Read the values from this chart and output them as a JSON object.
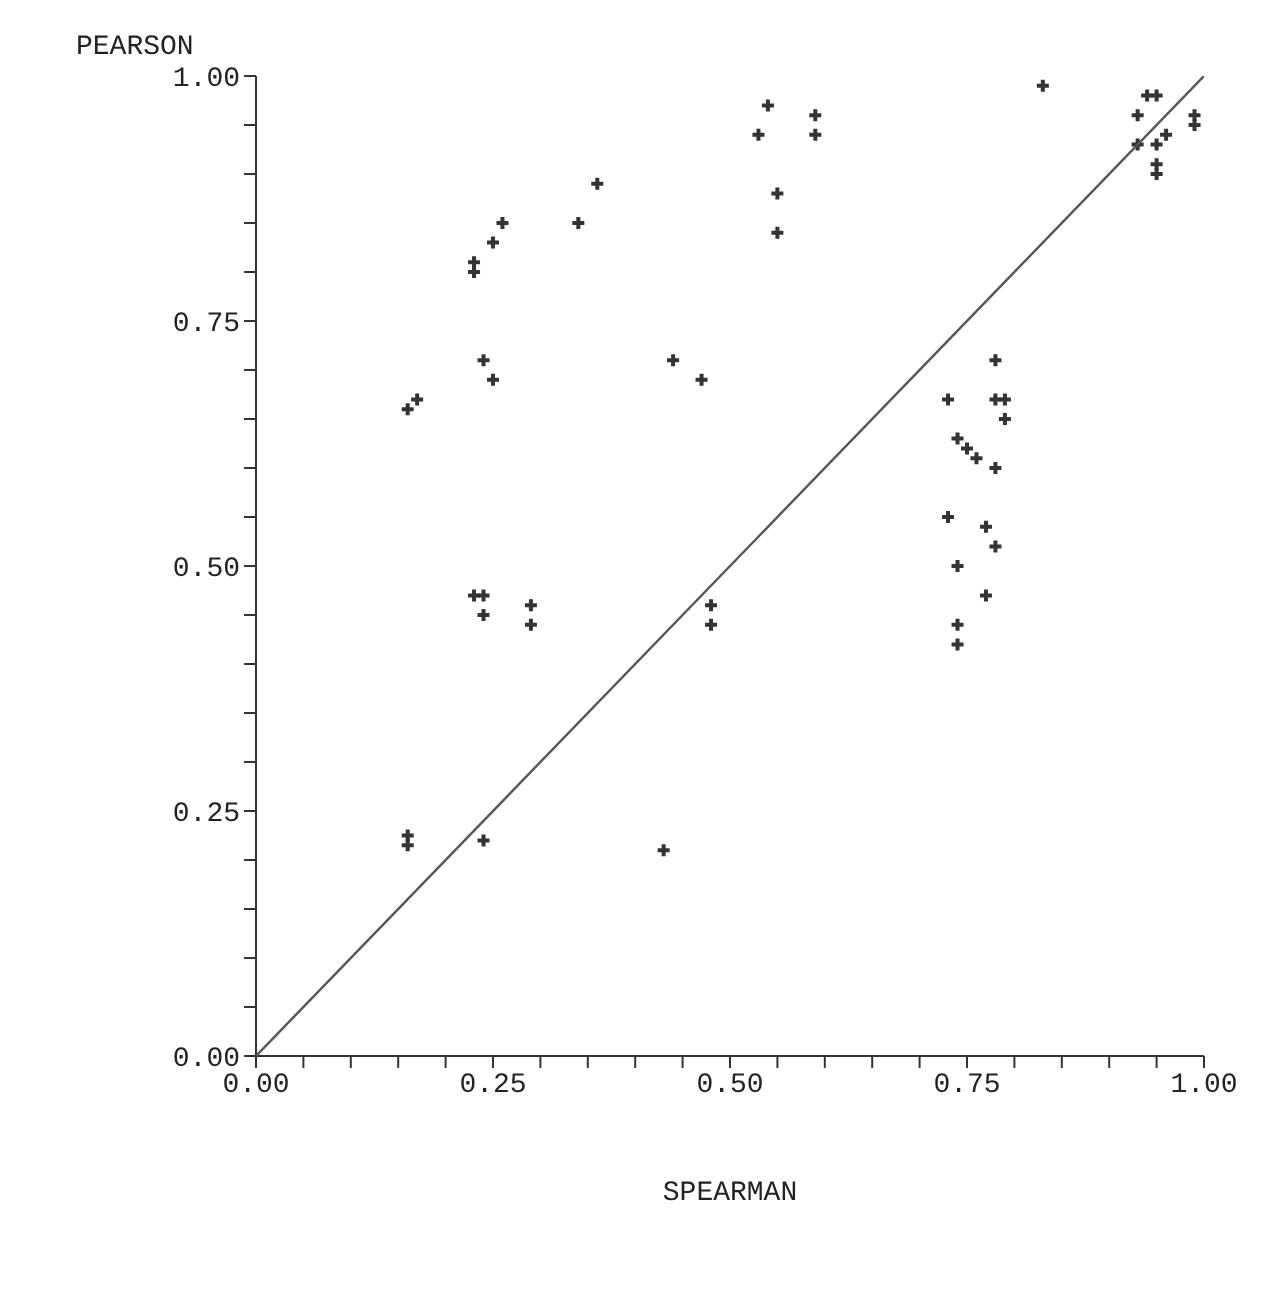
{
  "chart_data": {
    "type": "scatter",
    "xlabel": "SPEARMAN",
    "ylabel": "PEARSON",
    "grid": false,
    "xlim": [
      0,
      1
    ],
    "ylim": [
      0,
      1
    ],
    "xticks": [
      {
        "value": 0,
        "label": "0.00"
      },
      {
        "value": 0.05,
        "label": null
      },
      {
        "value": 0.1,
        "label": null
      },
      {
        "value": 0.15,
        "label": null
      },
      {
        "value": 0.2,
        "label": null
      },
      {
        "value": 0.25,
        "label": "0.25"
      },
      {
        "value": 0.3,
        "label": null
      },
      {
        "value": 0.35,
        "label": null
      },
      {
        "value": 0.4,
        "label": null
      },
      {
        "value": 0.45,
        "label": null
      },
      {
        "value": 0.5,
        "label": "0.50"
      },
      {
        "value": 0.55,
        "label": null
      },
      {
        "value": 0.6,
        "label": null
      },
      {
        "value": 0.65,
        "label": null
      },
      {
        "value": 0.7,
        "label": null
      },
      {
        "value": 0.75,
        "label": "0.75"
      },
      {
        "value": 0.8,
        "label": null
      },
      {
        "value": 0.85,
        "label": null
      },
      {
        "value": 0.9,
        "label": null
      },
      {
        "value": 0.95,
        "label": null
      },
      {
        "value": 1,
        "label": "1.00"
      }
    ],
    "yticks": [
      {
        "value": 0,
        "label": "0.00"
      },
      {
        "value": 0.05,
        "label": null
      },
      {
        "value": 0.1,
        "label": null
      },
      {
        "value": 0.15,
        "label": null
      },
      {
        "value": 0.2,
        "label": null
      },
      {
        "value": 0.25,
        "label": "0.25"
      },
      {
        "value": 0.3,
        "label": null
      },
      {
        "value": 0.35,
        "label": null
      },
      {
        "value": 0.4,
        "label": null
      },
      {
        "value": 0.45,
        "label": null
      },
      {
        "value": 0.5,
        "label": "0.50"
      },
      {
        "value": 0.55,
        "label": null
      },
      {
        "value": 0.6,
        "label": null
      },
      {
        "value": 0.65,
        "label": null
      },
      {
        "value": 0.7,
        "label": null
      },
      {
        "value": 0.75,
        "label": "0.75"
      },
      {
        "value": 0.8,
        "label": null
      },
      {
        "value": 0.85,
        "label": null
      },
      {
        "value": 0.9,
        "label": null
      },
      {
        "value": 0.95,
        "label": null
      },
      {
        "value": 1,
        "label": "1.00"
      }
    ],
    "series": [
      {
        "marker": "cross",
        "color": "#333333",
        "x": [
          0.16,
          0.17,
          0.23,
          0.23,
          0.25,
          0.26,
          0.24,
          0.25,
          0.34,
          0.36,
          0.44,
          0.47,
          0.54,
          0.53,
          0.59,
          0.59,
          0.55,
          0.55,
          0.83,
          0.94,
          0.95,
          0.93,
          0.93,
          0.96,
          0.95,
          0.95,
          0.95,
          0.99,
          0.99,
          0.78,
          0.73,
          0.78,
          0.79,
          0.79,
          0.74,
          0.75,
          0.76,
          0.78,
          0.73,
          0.77,
          0.78,
          0.74,
          0.77,
          0.74,
          0.74,
          0.24,
          0.23,
          0.24,
          0.29,
          0.29,
          0.48,
          0.48,
          0.16,
          0.16,
          0.24,
          0.43
        ],
        "values": [
          0.66,
          0.67,
          0.8,
          0.81,
          0.83,
          0.85,
          0.71,
          0.69,
          0.85,
          0.89,
          0.71,
          0.69,
          0.97,
          0.94,
          0.96,
          0.94,
          0.88,
          0.84,
          0.99,
          0.98,
          0.98,
          0.96,
          0.93,
          0.94,
          0.93,
          0.9,
          0.91,
          0.96,
          0.95,
          0.71,
          0.67,
          0.67,
          0.67,
          0.65,
          0.63,
          0.62,
          0.61,
          0.6,
          0.55,
          0.54,
          0.52,
          0.5,
          0.47,
          0.44,
          0.42,
          0.47,
          0.47,
          0.45,
          0.46,
          0.44,
          0.46,
          0.44,
          0.225,
          0.215,
          0.22,
          0.21
        ]
      },
      {
        "type": "line",
        "marker": "none",
        "color": "#555555",
        "x": [
          0,
          1
        ],
        "values": [
          0,
          1
        ]
      }
    ]
  }
}
